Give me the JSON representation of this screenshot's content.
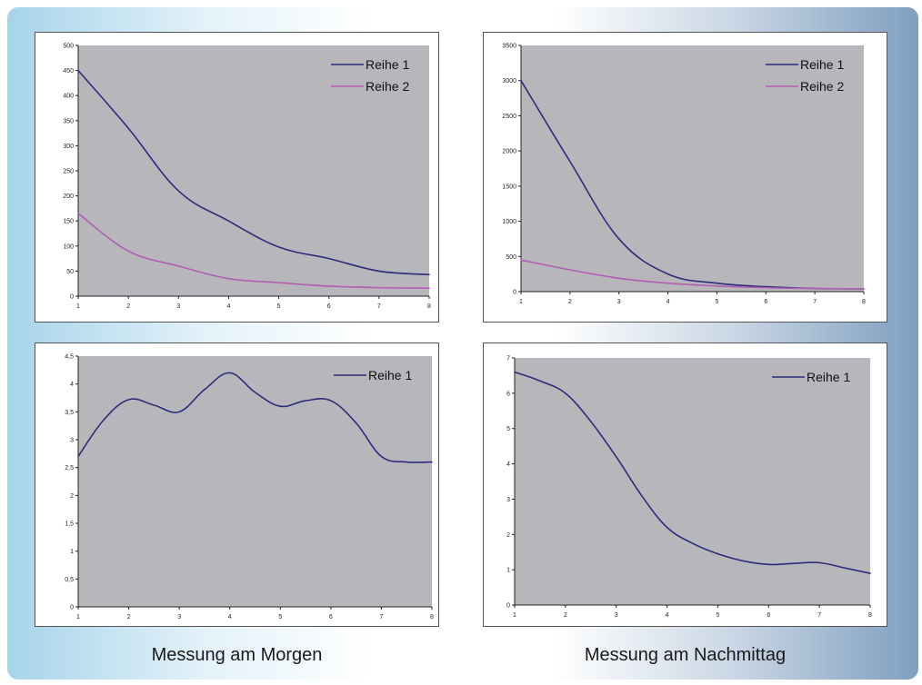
{
  "captions": {
    "left": "Messung am Morgen",
    "right": "Messung am Nachmittag"
  },
  "colors": {
    "plot_background": "#b6b6bb",
    "series_1": "#2c2c7a",
    "series_2": "#b35db3"
  },
  "chart_data": [
    {
      "type": "line",
      "x": [
        1,
        2,
        3,
        4,
        5,
        6,
        7,
        8
      ],
      "xlim": [
        1,
        8
      ],
      "ylim": [
        0,
        500
      ],
      "yticks": [
        0,
        50,
        100,
        150,
        200,
        250,
        300,
        350,
        400,
        450,
        500
      ],
      "ytick_labels": [
        "0",
        "50",
        "100",
        "150",
        "200",
        "250",
        "300",
        "350",
        "400",
        "450",
        "500"
      ],
      "xtick_labels": [
        "1",
        "2",
        "3",
        "4",
        "5",
        "6",
        "7",
        "8"
      ],
      "legend": "top-right",
      "grid": false,
      "series": [
        {
          "name": "Reihe 1",
          "values": [
            450,
            335,
            210,
            150,
            98,
            75,
            50,
            43
          ]
        },
        {
          "name": "Reihe 2",
          "values": [
            165,
            90,
            60,
            35,
            27,
            20,
            17,
            16
          ]
        }
      ]
    },
    {
      "type": "line",
      "x": [
        1,
        2,
        3,
        4,
        5,
        6,
        7,
        8
      ],
      "xlim": [
        1,
        8
      ],
      "ylim": [
        0,
        3500
      ],
      "yticks": [
        0,
        500,
        1000,
        1500,
        2000,
        2500,
        3000,
        3500
      ],
      "ytick_labels": [
        "0",
        "500",
        "1000",
        "1500",
        "2000",
        "2500",
        "3000",
        "3500"
      ],
      "xtick_labels": [
        "1",
        "2",
        "3",
        "4",
        "5",
        "6",
        "7",
        "8"
      ],
      "legend": "top-right",
      "grid": false,
      "series": [
        {
          "name": "Reihe 1",
          "values": [
            3000,
            1850,
            750,
            250,
            120,
            70,
            45,
            40
          ]
        },
        {
          "name": "Reihe 2",
          "values": [
            450,
            310,
            190,
            120,
            80,
            55,
            45,
            40
          ]
        }
      ]
    },
    {
      "type": "line",
      "x": [
        1,
        1.5,
        2,
        2.5,
        3,
        3.5,
        4,
        4.5,
        5,
        5.5,
        6,
        6.5,
        7,
        7.5,
        8
      ],
      "xlim": [
        1,
        8
      ],
      "ylim": [
        0,
        4.5
      ],
      "yticks": [
        0,
        0.5,
        1,
        1.5,
        2,
        2.5,
        3,
        3.5,
        4,
        4.5
      ],
      "ytick_labels": [
        "0",
        "0,5",
        "1",
        "1,5",
        "2",
        "2,5",
        "3",
        "3,5",
        "4",
        "4,5"
      ],
      "xtick_labels": [
        "1",
        "2",
        "3",
        "4",
        "5",
        "6",
        "7",
        "8"
      ],
      "legend": "top-right",
      "grid": false,
      "series": [
        {
          "name": "Reihe 1",
          "values": [
            2.7,
            3.35,
            3.72,
            3.62,
            3.5,
            3.9,
            4.2,
            3.85,
            3.6,
            3.7,
            3.7,
            3.3,
            2.7,
            2.6,
            2.6
          ]
        }
      ]
    },
    {
      "type": "line",
      "x": [
        1,
        1.5,
        2,
        2.5,
        3,
        3.5,
        4,
        4.5,
        5,
        5.5,
        6,
        6.5,
        7,
        7.5,
        8
      ],
      "xlim": [
        1,
        8
      ],
      "ylim": [
        0,
        7
      ],
      "yticks": [
        0,
        1,
        2,
        3,
        4,
        5,
        6,
        7
      ],
      "ytick_labels": [
        "0",
        "1",
        "2",
        "3",
        "4",
        "5",
        "6",
        "7"
      ],
      "xtick_labels": [
        "1",
        "2",
        "3",
        "4",
        "5",
        "6",
        "7",
        "8"
      ],
      "legend": "top-right",
      "grid": false,
      "series": [
        {
          "name": "Reihe 1",
          "values": [
            6.6,
            6.35,
            6.0,
            5.2,
            4.2,
            3.1,
            2.2,
            1.75,
            1.45,
            1.25,
            1.15,
            1.18,
            1.2,
            1.05,
            0.9
          ]
        }
      ]
    }
  ]
}
